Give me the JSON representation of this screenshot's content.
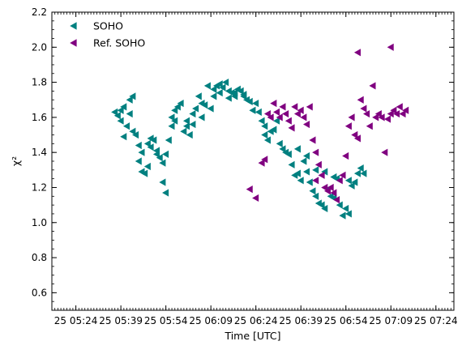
{
  "chart_data": {
    "type": "scatter",
    "title": "",
    "xlabel": "Time [UTC]",
    "ylabel": "χ²",
    "xlim": [
      "05:16",
      "07:30"
    ],
    "ylim": [
      0.5,
      2.2
    ],
    "xticks": [
      {
        "t": "05:24",
        "label": "25 05:24"
      },
      {
        "t": "05:39",
        "label": "25 05:39"
      },
      {
        "t": "05:54",
        "label": "25 05:54"
      },
      {
        "t": "06:09",
        "label": "25 06:09"
      },
      {
        "t": "06:24",
        "label": "25 06:24"
      },
      {
        "t": "06:39",
        "label": "25 06:39"
      },
      {
        "t": "06:54",
        "label": "25 06:54"
      },
      {
        "t": "07:09",
        "label": "25 07:09"
      },
      {
        "t": "07:24",
        "label": "25 07:24"
      }
    ],
    "yticks": [
      0.6,
      0.8,
      1.0,
      1.2,
      1.4,
      1.6,
      1.8,
      2.0,
      2.2
    ],
    "grid": false,
    "legend_position": "top-left",
    "marker": "left-triangle",
    "series": [
      {
        "name": "SOHO",
        "color": "#008080",
        "points": [
          [
            "05:37",
            1.63
          ],
          [
            "05:38",
            1.61
          ],
          [
            "05:39",
            1.58
          ],
          [
            "05:39",
            1.64
          ],
          [
            "05:40",
            1.66
          ],
          [
            "05:40",
            1.49
          ],
          [
            "05:41",
            1.55
          ],
          [
            "05:42",
            1.7
          ],
          [
            "05:42",
            1.62
          ],
          [
            "05:43",
            1.72
          ],
          [
            "05:43",
            1.52
          ],
          [
            "05:44",
            1.5
          ],
          [
            "05:45",
            1.44
          ],
          [
            "05:45",
            1.35
          ],
          [
            "05:46",
            1.4
          ],
          [
            "05:46",
            1.29
          ],
          [
            "05:47",
            1.28
          ],
          [
            "05:48",
            1.45
          ],
          [
            "05:48",
            1.32
          ],
          [
            "05:49",
            1.43
          ],
          [
            "05:49",
            1.48
          ],
          [
            "05:50",
            1.47
          ],
          [
            "05:51",
            1.41
          ],
          [
            "05:51",
            1.39
          ],
          [
            "05:52",
            1.37
          ],
          [
            "05:53",
            1.34
          ],
          [
            "05:53",
            1.23
          ],
          [
            "05:54",
            1.17
          ],
          [
            "05:54",
            1.39
          ],
          [
            "05:55",
            1.47
          ],
          [
            "05:56",
            1.55
          ],
          [
            "05:56",
            1.6
          ],
          [
            "05:57",
            1.58
          ],
          [
            "05:57",
            1.64
          ],
          [
            "05:58",
            1.66
          ],
          [
            "05:59",
            1.68
          ],
          [
            "06:00",
            1.52
          ],
          [
            "06:01",
            1.55
          ],
          [
            "06:01",
            1.58
          ],
          [
            "06:02",
            1.5
          ],
          [
            "06:03",
            1.62
          ],
          [
            "06:03",
            1.56
          ],
          [
            "06:04",
            1.65
          ],
          [
            "06:05",
            1.72
          ],
          [
            "06:06",
            1.6
          ],
          [
            "06:06",
            1.68
          ],
          [
            "06:07",
            1.67
          ],
          [
            "06:08",
            1.78
          ],
          [
            "06:09",
            1.65
          ],
          [
            "06:10",
            1.76
          ],
          [
            "06:10",
            1.72
          ],
          [
            "06:11",
            1.78
          ],
          [
            "06:12",
            1.79
          ],
          [
            "06:12",
            1.74
          ],
          [
            "06:13",
            1.77
          ],
          [
            "06:14",
            1.8
          ],
          [
            "06:15",
            1.75
          ],
          [
            "06:15",
            1.71
          ],
          [
            "06:16",
            1.74
          ],
          [
            "06:17",
            1.74
          ],
          [
            "06:17",
            1.72
          ],
          [
            "06:18",
            1.76
          ],
          [
            "06:19",
            1.75
          ],
          [
            "06:20",
            1.73
          ],
          [
            "06:20",
            1.72
          ],
          [
            "06:21",
            1.7
          ],
          [
            "06:22",
            1.69
          ],
          [
            "06:23",
            1.64
          ],
          [
            "06:24",
            1.68
          ],
          [
            "06:25",
            1.63
          ],
          [
            "06:26",
            1.58
          ],
          [
            "06:27",
            1.55
          ],
          [
            "06:27",
            1.5
          ],
          [
            "06:28",
            1.47
          ],
          [
            "06:29",
            1.52
          ],
          [
            "06:30",
            1.53
          ],
          [
            "06:31",
            1.58
          ],
          [
            "06:32",
            1.45
          ],
          [
            "06:33",
            1.42
          ],
          [
            "06:34",
            1.4
          ],
          [
            "06:35",
            1.39
          ],
          [
            "06:36",
            1.33
          ],
          [
            "06:37",
            1.27
          ],
          [
            "06:38",
            1.28
          ],
          [
            "06:38",
            1.42
          ],
          [
            "06:39",
            1.24
          ],
          [
            "06:40",
            1.35
          ],
          [
            "06:41",
            1.38
          ],
          [
            "06:41",
            1.29
          ],
          [
            "06:42",
            1.23
          ],
          [
            "06:43",
            1.18
          ],
          [
            "06:44",
            1.3
          ],
          [
            "06:44",
            1.15
          ],
          [
            "06:45",
            1.11
          ],
          [
            "06:46",
            1.1
          ],
          [
            "06:47",
            1.08
          ],
          [
            "06:47",
            1.29
          ],
          [
            "06:48",
            1.19
          ],
          [
            "06:49",
            1.15
          ],
          [
            "06:50",
            1.14
          ],
          [
            "06:50",
            1.26
          ],
          [
            "06:51",
            1.25
          ],
          [
            "06:52",
            1.1
          ],
          [
            "06:53",
            1.04
          ],
          [
            "06:54",
            1.08
          ],
          [
            "06:55",
            1.24
          ],
          [
            "06:55",
            1.05
          ],
          [
            "06:56",
            1.21
          ],
          [
            "06:57",
            1.23
          ],
          [
            "06:58",
            1.28
          ],
          [
            "06:59",
            1.31
          ],
          [
            "07:00",
            1.28
          ]
        ]
      },
      {
        "name": "Ref. SOHO",
        "color": "#800080",
        "points": [
          [
            "06:22",
            1.19
          ],
          [
            "06:24",
            1.14
          ],
          [
            "06:26",
            1.34
          ],
          [
            "06:27",
            1.36
          ],
          [
            "06:28",
            1.62
          ],
          [
            "06:29",
            1.6
          ],
          [
            "06:30",
            1.68
          ],
          [
            "06:31",
            1.63
          ],
          [
            "06:32",
            1.6
          ],
          [
            "06:33",
            1.66
          ],
          [
            "06:34",
            1.62
          ],
          [
            "06:35",
            1.58
          ],
          [
            "06:36",
            1.54
          ],
          [
            "06:37",
            1.66
          ],
          [
            "06:38",
            1.62
          ],
          [
            "06:39",
            1.64
          ],
          [
            "06:40",
            1.6
          ],
          [
            "06:41",
            1.56
          ],
          [
            "06:42",
            1.66
          ],
          [
            "06:43",
            1.47
          ],
          [
            "06:44",
            1.4
          ],
          [
            "06:44",
            1.24
          ],
          [
            "06:45",
            1.33
          ],
          [
            "06:46",
            1.27
          ],
          [
            "06:47",
            1.2
          ],
          [
            "06:48",
            1.18
          ],
          [
            "06:49",
            1.2
          ],
          [
            "06:50",
            1.17
          ],
          [
            "06:51",
            1.13
          ],
          [
            "06:52",
            1.24
          ],
          [
            "06:53",
            1.27
          ],
          [
            "06:54",
            1.38
          ],
          [
            "06:55",
            1.55
          ],
          [
            "06:56",
            1.6
          ],
          [
            "06:57",
            1.5
          ],
          [
            "06:58",
            1.48
          ],
          [
            "06:58",
            1.97
          ],
          [
            "06:59",
            1.7
          ],
          [
            "07:00",
            1.65
          ],
          [
            "07:01",
            1.62
          ],
          [
            "07:02",
            1.55
          ],
          [
            "07:03",
            1.78
          ],
          [
            "07:04",
            1.6
          ],
          [
            "07:05",
            1.62
          ],
          [
            "07:06",
            1.6
          ],
          [
            "07:07",
            1.4
          ],
          [
            "07:08",
            1.59
          ],
          [
            "07:09",
            1.62
          ],
          [
            "07:09",
            2.0
          ],
          [
            "07:10",
            1.64
          ],
          [
            "07:11",
            1.62
          ],
          [
            "07:12",
            1.66
          ],
          [
            "07:13",
            1.62
          ],
          [
            "07:14",
            1.64
          ]
        ]
      }
    ]
  }
}
